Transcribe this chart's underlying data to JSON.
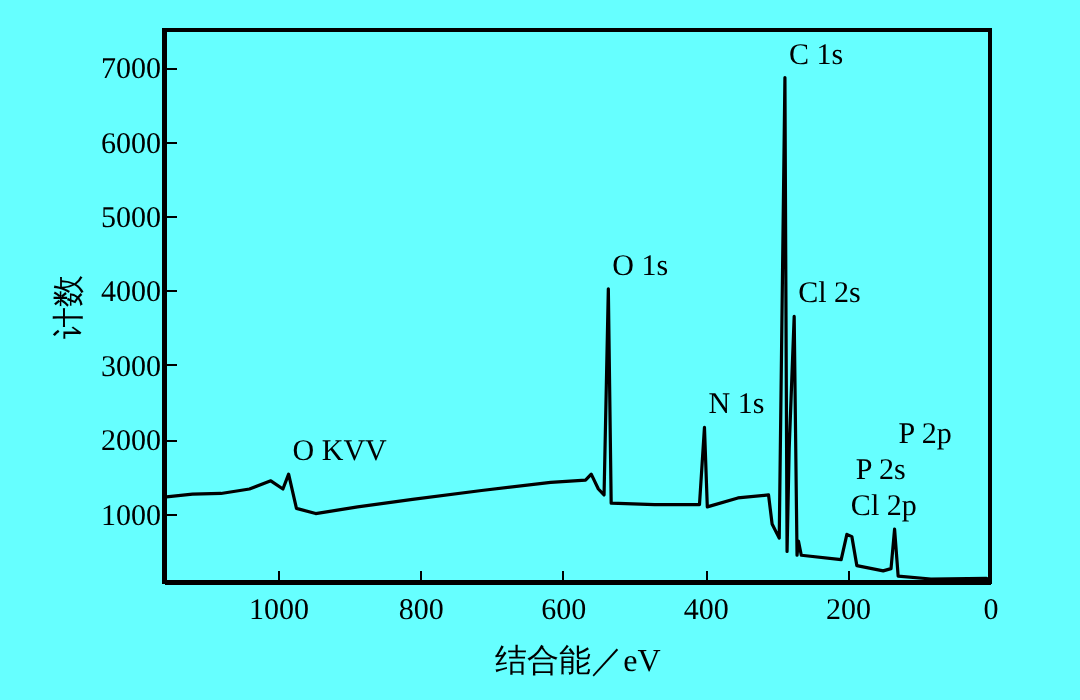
{
  "chart_data": {
    "type": "line",
    "xlabel": "结合能／eV",
    "ylabel": "计数",
    "x": [
      1160,
      1120,
      1080,
      1040,
      1010,
      993,
      985,
      974,
      947,
      888,
      811,
      714,
      617,
      568,
      560,
      550,
      542,
      536,
      532,
      471,
      408,
      401,
      397,
      354,
      311,
      306,
      296,
      288,
      285,
      282,
      275,
      271,
      269,
      265,
      209,
      201,
      194,
      187,
      150,
      139,
      134,
      129,
      83,
      5,
      0
    ],
    "series": [
      {
        "color": "#000000",
        "values": [
          1220,
          1260,
          1270,
          1330,
          1440,
          1330,
          1530,
          1070,
          1000,
          1090,
          1190,
          1310,
          1420,
          1450,
          1530,
          1330,
          1250,
          4020,
          1140,
          1120,
          1120,
          2160,
          1090,
          1210,
          1250,
          860,
          670,
          6860,
          490,
          1880,
          3650,
          440,
          630,
          440,
          380,
          720,
          690,
          300,
          230,
          260,
          790,
          160,
          120,
          130,
          100
        ]
      }
    ],
    "xlim": [
      1160,
      0
    ],
    "xticks": [
      1000,
      800,
      600,
      400,
      200,
      0
    ],
    "ylim": [
      80,
      7500
    ],
    "yticks": [
      1000,
      2000,
      3000,
      4000,
      5000,
      6000,
      7000
    ],
    "grid": false,
    "marker": "none",
    "line_style": "solid",
    "annotations": [
      {
        "text": "O KVV",
        "x": 985,
        "y": 1530
      },
      {
        "text": "O 1s",
        "x": 536,
        "y": 4020
      },
      {
        "text": "N 1s",
        "x": 401,
        "y": 2160
      },
      {
        "text": "C 1s",
        "x": 288,
        "y": 6860
      },
      {
        "text": "Cl 2s",
        "x": 275,
        "y": 3650
      },
      {
        "text": "Cl 2p",
        "x": 201,
        "y": 720
      },
      {
        "text": "P 2s",
        "x": 194,
        "y": 690
      },
      {
        "text": "P 2p",
        "x": 134,
        "y": 790
      }
    ]
  }
}
